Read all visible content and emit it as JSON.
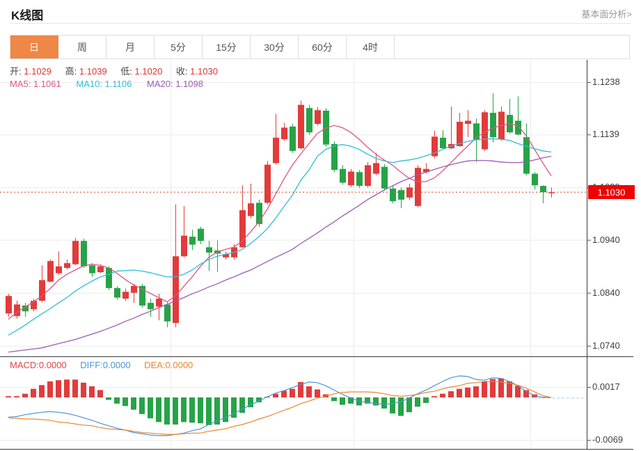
{
  "header": {
    "title": "K线图",
    "analysis_link": "基本面分析>"
  },
  "tabs": {
    "items": [
      {
        "label": "日",
        "active": true
      },
      {
        "label": "周",
        "active": false
      },
      {
        "label": "月",
        "active": false
      },
      {
        "label": "5分",
        "active": false
      },
      {
        "label": "15分",
        "active": false
      },
      {
        "label": "30分",
        "active": false
      },
      {
        "label": "60分",
        "active": false
      },
      {
        "label": "4时",
        "active": false
      }
    ]
  },
  "main_chart": {
    "ohlc": {
      "open_label": "开:",
      "open_value": "1.1029",
      "high_label": "高:",
      "high_value": "1.1039",
      "low_label": "低:",
      "low_value": "1.1020",
      "close_label": "收:",
      "close_value": "1.1030"
    },
    "ma": {
      "ma5_label": "MA5:",
      "ma5_value": "1.1061",
      "ma10_label": "MA10:",
      "ma10_value": "1.1106",
      "ma20_label": "MA20:",
      "ma20_value": "1.1098"
    },
    "y_axis": [
      "1.1238",
      "1.1139",
      "1.1039",
      "1.0940",
      "1.0840",
      "1.0740"
    ],
    "price_badge": "1.1030"
  },
  "macd_panel": {
    "labels": {
      "macd_label": "MACD:",
      "macd_value": "0.0000",
      "diff_label": "DIFF:",
      "diff_value": "0.0000",
      "dea_label": "DEA:",
      "dea_value": "0.0000"
    },
    "y_axis": [
      "0.0017",
      "-0.0069"
    ]
  },
  "colors": {
    "up": "#e23b3b",
    "down": "#26a347",
    "ma5": "#e0557f",
    "ma10": "#2fbdd4",
    "ma20": "#9d5bb5",
    "diff": "#4a96d8",
    "dea": "#e8872e",
    "badge": "#ee0202",
    "dotted_price_line": "#e2705f",
    "macd_dash": "#a9cfe7",
    "tab_active_bg": "#ef8747",
    "grid": "#ececec",
    "axis_line": "#3a3a3a"
  },
  "chart_data": [
    {
      "type": "candlestick",
      "panel": "price",
      "y_ticks": [
        1.1238,
        1.1139,
        1.1039,
        1.094,
        1.084,
        1.074
      ],
      "y_range": [
        1.072,
        1.128
      ],
      "last_price": 1.103,
      "grid": "on",
      "candles": [
        [
          1.0801,
          1.0838,
          1.0795,
          1.0834
        ],
        [
          1.0796,
          1.0825,
          1.0791,
          1.0818
        ],
        [
          1.0816,
          1.0821,
          1.0795,
          1.0805
        ],
        [
          1.0809,
          1.0829,
          1.0805,
          1.0825
        ],
        [
          1.0825,
          1.0892,
          1.0822,
          1.0864
        ],
        [
          1.0861,
          1.0903,
          1.086,
          1.09
        ],
        [
          1.0877,
          1.0918,
          1.0874,
          1.089
        ],
        [
          1.0887,
          1.0903,
          1.0884,
          1.0896
        ],
        [
          1.0894,
          1.0944,
          1.0892,
          1.0938
        ],
        [
          1.0938,
          1.0942,
          1.0887,
          1.089
        ],
        [
          1.0892,
          1.0896,
          1.087,
          1.0877
        ],
        [
          1.0879,
          1.0894,
          1.0877,
          1.089
        ],
        [
          1.0887,
          1.089,
          1.0845,
          1.0849
        ],
        [
          1.0849,
          1.0853,
          1.0827,
          1.0831
        ],
        [
          1.0829,
          1.0848,
          1.0825,
          1.0842
        ],
        [
          1.084,
          1.0857,
          1.0821,
          1.0853
        ],
        [
          1.0853,
          1.0857,
          1.0812,
          1.0816
        ],
        [
          1.0821,
          1.0829,
          1.0795,
          1.0809
        ],
        [
          1.0814,
          1.0838,
          1.0788,
          1.0829
        ],
        [
          1.0818,
          1.0822,
          1.0775,
          1.0786
        ],
        [
          1.0783,
          1.1007,
          1.0775,
          1.0909
        ],
        [
          1.0909,
          1.1004,
          1.0907,
          1.0948
        ],
        [
          1.0946,
          1.0959,
          1.0921,
          1.0931
        ],
        [
          1.0961,
          1.0965,
          1.0932,
          1.0938
        ],
        [
          1.0926,
          1.0938,
          1.0881,
          1.0916
        ],
        [
          1.092,
          1.0939,
          1.0879,
          1.0914
        ],
        [
          1.0907,
          1.0918,
          1.0903,
          1.0913
        ],
        [
          1.0907,
          1.0932,
          1.0903,
          1.0926
        ],
        [
          1.0926,
          1.1043,
          1.0925,
          1.0996
        ],
        [
          1.0985,
          1.1046,
          1.0981,
          1.1009
        ],
        [
          1.101,
          1.1016,
          1.0965,
          1.097
        ],
        [
          1.101,
          1.1089,
          1.1007,
          1.1082
        ],
        [
          1.1085,
          1.1178,
          1.1082,
          1.1133
        ],
        [
          1.113,
          1.1161,
          1.1127,
          1.1152
        ],
        [
          1.1154,
          1.1159,
          1.1104,
          1.1108
        ],
        [
          1.1113,
          1.1203,
          1.1111,
          1.1195
        ],
        [
          1.1189,
          1.1195,
          1.1139,
          1.1143
        ],
        [
          1.1159,
          1.1191,
          1.1156,
          1.1185
        ],
        [
          1.1184,
          1.1189,
          1.1116,
          1.112
        ],
        [
          1.1121,
          1.1126,
          1.1068,
          1.1072
        ],
        [
          1.1074,
          1.1081,
          1.1044,
          1.1048
        ],
        [
          1.1043,
          1.1074,
          1.104,
          1.1069
        ],
        [
          1.1068,
          1.1072,
          1.1038,
          1.1042
        ],
        [
          1.1042,
          1.1087,
          1.1039,
          1.1081
        ],
        [
          1.1065,
          1.1104,
          1.1062,
          1.1085
        ],
        [
          1.1078,
          1.1083,
          1.1033,
          1.1037
        ],
        [
          1.1037,
          1.1042,
          1.1009,
          1.1013
        ],
        [
          1.1034,
          1.1039,
          1.1,
          1.1016
        ],
        [
          1.102,
          1.1046,
          1.1016,
          1.1039
        ],
        [
          1.1004,
          1.1081,
          1.1001,
          1.1076
        ],
        [
          1.1068,
          1.1085,
          1.1065,
          1.1074
        ],
        [
          1.1098,
          1.1146,
          1.1094,
          1.1135
        ],
        [
          1.1133,
          1.1147,
          1.1111,
          1.1113
        ],
        [
          1.1113,
          1.1192,
          1.1111,
          1.1121
        ],
        [
          1.1117,
          1.118,
          1.1116,
          1.1163
        ],
        [
          1.1159,
          1.1185,
          1.1134,
          1.1165
        ],
        [
          1.116,
          1.1169,
          1.1087,
          1.1129
        ],
        [
          1.1111,
          1.1185,
          1.1108,
          1.1181
        ],
        [
          1.118,
          1.1217,
          1.1124,
          1.1134
        ],
        [
          1.113,
          1.1192,
          1.1127,
          1.1182
        ],
        [
          1.1176,
          1.1206,
          1.1141,
          1.1143
        ],
        [
          1.1165,
          1.1211,
          1.1137,
          1.1139
        ],
        [
          1.1134,
          1.116,
          1.1062,
          1.1065
        ],
        [
          1.1065,
          1.1068,
          1.1035,
          1.1043
        ],
        [
          1.1042,
          1.1043,
          1.1009,
          1.103
        ],
        [
          1.1029,
          1.1039,
          1.102,
          1.103
        ]
      ],
      "series": [
        {
          "name": "MA5",
          "values": [
            1.079,
            1.0803,
            1.0813,
            1.0823,
            1.0834,
            1.0848,
            1.0864,
            1.0875,
            1.0883,
            1.0891,
            1.0894,
            1.0892,
            1.0887,
            1.0877,
            1.0865,
            1.0855,
            1.0847,
            1.0839,
            1.0831,
            1.0823,
            1.0834,
            1.0852,
            1.087,
            1.089,
            1.0907,
            1.0917,
            1.0922,
            1.0926,
            1.0938,
            1.0955,
            1.0974,
            1.0998,
            1.1026,
            1.1055,
            1.1081,
            1.1102,
            1.1122,
            1.1141,
            1.1151,
            1.1156,
            1.1152,
            1.1143,
            1.113,
            1.1115,
            1.1102,
            1.1091,
            1.1081,
            1.1068,
            1.1056,
            1.105,
            1.105,
            1.1057,
            1.107,
            1.1086,
            1.1102,
            1.1117,
            1.1133,
            1.1143,
            1.1151,
            1.1156,
            1.1159,
            1.1156,
            1.1137,
            1.1111,
            1.1085,
            1.1061
          ]
        },
        {
          "name": "MA10",
          "values": [
            1.076,
            1.0769,
            1.0779,
            1.079,
            1.08,
            1.081,
            1.0821,
            1.0831,
            1.0843,
            1.0853,
            1.0862,
            1.087,
            1.0875,
            1.0881,
            1.0882,
            1.0883,
            1.0881,
            1.0878,
            1.0874,
            1.087,
            1.087,
            1.0875,
            1.0883,
            1.0894,
            1.0903,
            1.0909,
            1.0913,
            1.0916,
            1.0922,
            1.0933,
            1.0946,
            1.0961,
            1.0981,
            1.1003,
            1.1024,
            1.1052,
            1.1072,
            1.1098,
            1.1111,
            1.1117,
            1.112,
            1.1117,
            1.1111,
            1.1102,
            1.1094,
            1.1089,
            1.1086,
            1.1089,
            1.1091,
            1.1094,
            1.1099,
            1.1104,
            1.1111,
            1.1117,
            1.1122,
            1.1126,
            1.1129,
            1.113,
            1.1131,
            1.113,
            1.1128,
            1.1122,
            1.1117,
            1.1112,
            1.1108,
            1.1106
          ]
        },
        {
          "name": "MA20",
          "values": [
            1.0728,
            1.073,
            1.0732,
            1.0734,
            1.0736,
            1.074,
            1.0744,
            1.0748,
            1.0752,
            1.0757,
            1.0762,
            1.0767,
            1.0773,
            1.0779,
            1.0786,
            1.0792,
            1.0799,
            1.0805,
            1.0812,
            1.0818,
            1.0825,
            1.0831,
            1.0838,
            1.0844,
            1.0851,
            1.0857,
            1.0864,
            1.087,
            1.0877,
            1.0883,
            1.0891,
            1.0899,
            1.0907,
            1.0914,
            1.0922,
            1.0933,
            1.0943,
            1.0953,
            1.0964,
            1.0974,
            1.0985,
            1.0995,
            1.1005,
            1.1016,
            1.1025,
            1.1034,
            1.1042,
            1.105,
            1.1056,
            1.1063,
            1.1068,
            1.1073,
            1.1078,
            1.1082,
            1.1086,
            1.1089,
            1.109,
            1.109,
            1.1089,
            1.1087,
            1.1086,
            1.1086,
            1.1087,
            1.1091,
            1.1095,
            1.1098
          ]
        }
      ]
    },
    {
      "type": "macd",
      "panel": "macd",
      "y_ticks": [
        0.0017,
        -0.0069
      ],
      "y_range": [
        -0.00836,
        0.00667
      ],
      "hist": [
        0.0002,
        0.0002,
        0.0006,
        0.0014,
        0.002,
        0.0026,
        0.0028,
        0.0029,
        0.0029,
        0.0024,
        0.0018,
        0.0012,
        -0.0004,
        -0.001,
        -0.0014,
        -0.002,
        -0.0027,
        -0.0034,
        -0.004,
        -0.0044,
        -0.0044,
        -0.004,
        -0.0041,
        -0.0042,
        -0.0045,
        -0.0044,
        -0.004,
        -0.0033,
        -0.0025,
        -0.0016,
        -0.0008,
        0.0001,
        0.0006,
        0.0011,
        0.0014,
        0.0025,
        0.0018,
        0.0013,
        0.0005,
        -0.0006,
        -0.0012,
        -0.001,
        -0.0013,
        -0.001,
        -0.0013,
        -0.0018,
        -0.0026,
        -0.003,
        -0.0024,
        -0.0015,
        -0.0009,
        0.0002,
        0.0006,
        0.001,
        0.0014,
        0.0016,
        0.0018,
        0.0026,
        0.003,
        0.0031,
        0.0026,
        0.0019,
        0.0012,
        0.0005,
        0.0001,
        0
      ],
      "series": [
        {
          "name": "DIFF",
          "values": [
            -0.0032,
            -0.0031,
            -0.0028,
            -0.0026,
            -0.0024,
            -0.0023,
            -0.0024,
            -0.0026,
            -0.0029,
            -0.0033,
            -0.0037,
            -0.0042,
            -0.0046,
            -0.005,
            -0.0053,
            -0.0057,
            -0.0059,
            -0.0061,
            -0.0062,
            -0.0062,
            -0.006,
            -0.0058,
            -0.0054,
            -0.0051,
            -0.0044,
            -0.0038,
            -0.0033,
            -0.0026,
            -0.0019,
            -0.0012,
            -0.0006,
            0.0001,
            0.0007,
            0.0011,
            0.0016,
            0.0021,
            0.0025,
            0.0024,
            0.0019,
            0.0012,
            0.0005,
            -0.0001,
            -0.0006,
            -0.0008,
            -0.001,
            -0.0011,
            -0.001,
            -0.0007,
            -0.0001,
            0.0006,
            0.0012,
            0.0019,
            0.0026,
            0.0032,
            0.0035,
            0.0034,
            0.0029,
            0.0028,
            0.0032,
            0.0031,
            0.0026,
            0.0019,
            0.001,
            0.0003,
            0,
            0
          ]
        },
        {
          "name": "DEA",
          "values": [
            -0.0033,
            -0.0034,
            -0.0035,
            -0.0035,
            -0.0036,
            -0.0037,
            -0.004,
            -0.0041,
            -0.0043,
            -0.0045,
            -0.0046,
            -0.0049,
            -0.0051,
            -0.0052,
            -0.0053,
            -0.0055,
            -0.0057,
            -0.0058,
            -0.0059,
            -0.006,
            -0.006,
            -0.0059,
            -0.0058,
            -0.0058,
            -0.0055,
            -0.0053,
            -0.0051,
            -0.0047,
            -0.0044,
            -0.004,
            -0.0035,
            -0.0031,
            -0.0026,
            -0.0021,
            -0.0016,
            -0.001,
            -0.0006,
            -0.0001,
            0.0002,
            0.0006,
            0.0008,
            0.0009,
            0.0009,
            0.0009,
            0.0008,
            0.0006,
            0.0003,
            0.0002,
            0.0003,
            0.0005,
            0.0008,
            0.001,
            0.0014,
            0.0017,
            0.0019,
            0.0023,
            0.0024,
            0.0026,
            0.0026,
            0.0025,
            0.0023,
            0.002,
            0.0015,
            0.0009,
            0.0003,
            0
          ]
        }
      ]
    }
  ]
}
